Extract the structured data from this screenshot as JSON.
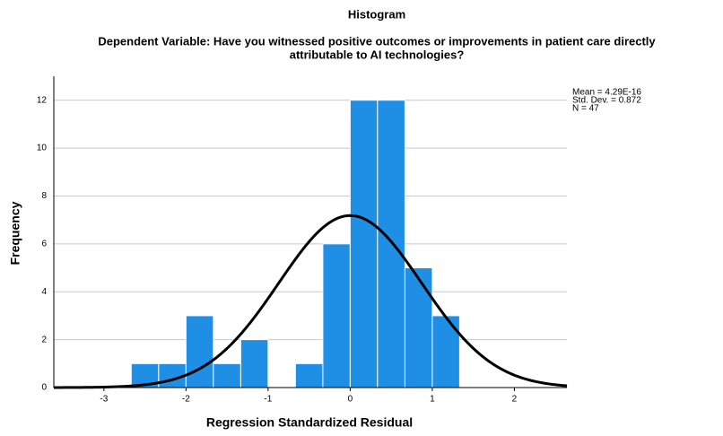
{
  "chart_data": {
    "type": "histogram",
    "title": "Histogram",
    "subtitle": [
      "Dependent Variable: Have you witnessed positive outcomes or improvements in patient care directly",
      "attributable to AI technologies?"
    ],
    "x_label": "Regression Standardized Residual",
    "y_label": "Frequency",
    "bins": [
      -2.667,
      -2.333,
      -2,
      -1.667,
      -1.333,
      -1,
      -0.667,
      -0.333,
      0,
      0.333,
      0.667,
      1,
      1.333
    ],
    "values": [
      1,
      1,
      3,
      1,
      2,
      0,
      1,
      6,
      12,
      12,
      5,
      3
    ],
    "color": "#1f8fe6",
    "xlim": [
      -3.61,
      2.64
    ],
    "xticks": [
      -3,
      -2,
      -1,
      0,
      1,
      2
    ],
    "ylim": [
      0,
      13
    ],
    "yticks": [
      0,
      2,
      4,
      6,
      8,
      10,
      12
    ],
    "grid": true,
    "stats": [
      {
        "value": 4.29e-16,
        "label": "Mean = 4.29E-16"
      },
      {
        "value": 0.872,
        "label": "Std. Dev. = 0.872"
      },
      {
        "value": 47,
        "label": "N = 47"
      }
    ],
    "curve_color": "#000000"
  }
}
